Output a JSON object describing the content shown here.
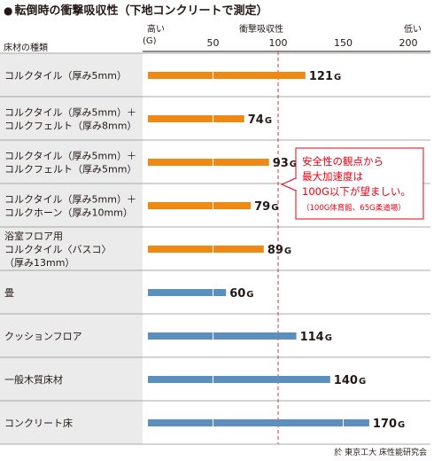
{
  "title": "転倒時の衝撃吸収性（下地コンクリートで測定）",
  "header": {
    "left_label": "床材の種類",
    "high_label": "高い",
    "mid_label": "衝撃吸収性",
    "low_label": "低い",
    "unit_label": "(G)"
  },
  "note": {
    "line1": "安全性の観点から",
    "line2": "最大加速度は",
    "line3": "100G以下が望ましい。",
    "line4": "（100G体育館、65G柔道場）"
  },
  "source": "於 東京工大 床性能研究会",
  "colors": {
    "orange": "#ee8a14",
    "blue": "#5b8fbe",
    "red_line": "#e0323c",
    "note_text": "#e60012",
    "band": "#ebebeb"
  },
  "chart_data": {
    "type": "bar",
    "orientation": "horizontal",
    "x_axis": {
      "range": [
        0,
        200
      ],
      "ticks": [
        50,
        100,
        150,
        200
      ]
    },
    "reference_line": 100,
    "value_unit": "G",
    "categories": [
      {
        "lines": [
          "コルクタイル（厚み5mm）"
        ],
        "value": 121,
        "color": "orange"
      },
      {
        "lines": [
          "コルクタイル（厚み5mm）＋",
          "コルクフェルト（厚み8mm）"
        ],
        "value": 74,
        "color": "orange"
      },
      {
        "lines": [
          "コルクタイル（厚み5mm）＋",
          "コルクフェルト（厚み5mm）"
        ],
        "value": 93,
        "color": "orange"
      },
      {
        "lines": [
          "コルクタイル（厚み5mm）＋",
          "コルクホーン（厚み10mm）"
        ],
        "value": 79,
        "color": "orange"
      },
      {
        "lines": [
          "浴室フロア用",
          "コルクタイル〈バスコ〉",
          "（厚み13mm）"
        ],
        "value": 89,
        "color": "orange"
      },
      {
        "lines": [
          "畳"
        ],
        "value": 60,
        "color": "blue"
      },
      {
        "lines": [
          "クッションフロア"
        ],
        "value": 114,
        "color": "blue"
      },
      {
        "lines": [
          "一般木質床材"
        ],
        "value": 140,
        "color": "blue"
      },
      {
        "lines": [
          "コンクリート床"
        ],
        "value": 170,
        "color": "blue"
      }
    ]
  }
}
